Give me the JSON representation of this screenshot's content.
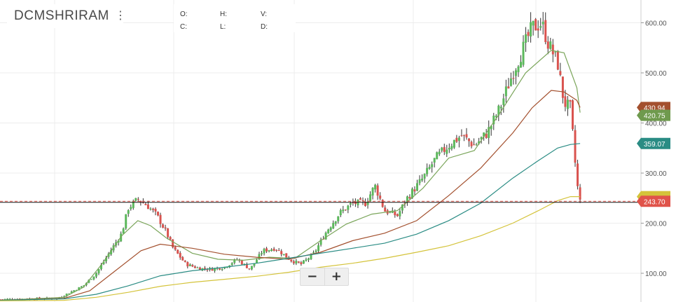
{
  "header": {
    "symbol": "DCMSHRIRAM",
    "menu_icon": "vertical-dots-icon"
  },
  "ohlc": {
    "o_label": "O:",
    "h_label": "H:",
    "l_label": "L:",
    "c_label": "C:",
    "v_label": "V:",
    "d_label": "D:"
  },
  "zoom": {
    "minus_label": "−",
    "plus_label": "+"
  },
  "colors": {
    "up": "#5cb85c",
    "down": "#d9534f",
    "ema20": "#7aa55a",
    "ema50": "#a3502e",
    "ema100": "#2a8c84",
    "ema200": "#d4c33a",
    "price": "#e0534a"
  },
  "chart_data": {
    "type": "candlestick",
    "symbol": "DCMSHRIRAM",
    "y_axis": {
      "ticks": [
        100,
        200,
        300,
        400,
        500,
        600
      ],
      "tick_labels": [
        "100.00",
        "200.00",
        "300.00",
        "400.00",
        "500.00",
        "600.00"
      ],
      "range": [
        40,
        640
      ],
      "position": "right"
    },
    "grid": true,
    "close_path": [
      [
        0,
        48
      ],
      [
        0.04,
        49
      ],
      [
        0.09,
        50
      ],
      [
        0.1,
        56
      ],
      [
        0.13,
        75
      ],
      [
        0.15,
        100
      ],
      [
        0.17,
        140
      ],
      [
        0.19,
        180
      ],
      [
        0.2,
        230
      ],
      [
        0.215,
        248
      ],
      [
        0.23,
        235
      ],
      [
        0.245,
        215
      ],
      [
        0.26,
        180
      ],
      [
        0.27,
        150
      ],
      [
        0.29,
        118
      ],
      [
        0.31,
        110
      ],
      [
        0.33,
        108
      ],
      [
        0.35,
        112
      ],
      [
        0.37,
        128
      ],
      [
        0.39,
        108
      ],
      [
        0.41,
        145
      ],
      [
        0.43,
        150
      ],
      [
        0.455,
        125
      ],
      [
        0.47,
        118
      ],
      [
        0.49,
        140
      ],
      [
        0.51,
        185
      ],
      [
        0.53,
        220
      ],
      [
        0.55,
        240
      ],
      [
        0.57,
        240
      ],
      [
        0.585,
        275
      ],
      [
        0.6,
        225
      ],
      [
        0.62,
        215
      ],
      [
        0.635,
        250
      ],
      [
        0.66,
        290
      ],
      [
        0.68,
        330
      ],
      [
        0.7,
        355
      ],
      [
        0.72,
        375
      ],
      [
        0.74,
        355
      ],
      [
        0.76,
        380
      ],
      [
        0.78,
        430
      ],
      [
        0.8,
        500
      ],
      [
        0.82,
        560
      ],
      [
        0.83,
        590
      ],
      [
        0.845,
        600
      ],
      [
        0.855,
        560
      ],
      [
        0.87,
        520
      ],
      [
        0.88,
        440
      ],
      [
        0.89,
        430
      ],
      [
        0.9,
        280
      ],
      [
        0.905,
        243.7
      ]
    ],
    "moving_averages": [
      {
        "color": "#7aa55a",
        "last": 420.75,
        "path": [
          [
            0,
            46
          ],
          [
            0.1,
            52
          ],
          [
            0.13,
            72
          ],
          [
            0.16,
            120
          ],
          [
            0.19,
            175
          ],
          [
            0.215,
            205
          ],
          [
            0.235,
            195
          ],
          [
            0.26,
            170
          ],
          [
            0.3,
            140
          ],
          [
            0.34,
            128
          ],
          [
            0.38,
            126
          ],
          [
            0.42,
            132
          ],
          [
            0.46,
            130
          ],
          [
            0.5,
            165
          ],
          [
            0.54,
            198
          ],
          [
            0.58,
            218
          ],
          [
            0.62,
            225
          ],
          [
            0.66,
            270
          ],
          [
            0.7,
            330
          ],
          [
            0.74,
            345
          ],
          [
            0.78,
            420
          ],
          [
            0.82,
            500
          ],
          [
            0.86,
            545
          ],
          [
            0.88,
            540
          ],
          [
            0.9,
            470
          ],
          [
            0.905,
            420.75
          ]
        ]
      },
      {
        "color": "#a3502e",
        "last": 430.94,
        "path": [
          [
            0,
            46
          ],
          [
            0.1,
            50
          ],
          [
            0.14,
            65
          ],
          [
            0.18,
            105
          ],
          [
            0.22,
            145
          ],
          [
            0.25,
            158
          ],
          [
            0.3,
            150
          ],
          [
            0.35,
            138
          ],
          [
            0.4,
            132
          ],
          [
            0.45,
            128
          ],
          [
            0.5,
            142
          ],
          [
            0.55,
            165
          ],
          [
            0.6,
            180
          ],
          [
            0.65,
            205
          ],
          [
            0.7,
            255
          ],
          [
            0.75,
            310
          ],
          [
            0.8,
            380
          ],
          [
            0.83,
            430
          ],
          [
            0.86,
            465
          ],
          [
            0.88,
            462
          ],
          [
            0.9,
            445
          ],
          [
            0.905,
            430.94
          ]
        ]
      },
      {
        "color": "#2a8c84",
        "last": 359.07,
        "path": [
          [
            0,
            46
          ],
          [
            0.1,
            49
          ],
          [
            0.15,
            58
          ],
          [
            0.2,
            75
          ],
          [
            0.25,
            95
          ],
          [
            0.3,
            105
          ],
          [
            0.35,
            112
          ],
          [
            0.4,
            120
          ],
          [
            0.45,
            130
          ],
          [
            0.5,
            140
          ],
          [
            0.55,
            150
          ],
          [
            0.6,
            160
          ],
          [
            0.65,
            178
          ],
          [
            0.7,
            205
          ],
          [
            0.75,
            240
          ],
          [
            0.8,
            290
          ],
          [
            0.84,
            325
          ],
          [
            0.87,
            350
          ],
          [
            0.89,
            357
          ],
          [
            0.905,
            359.07
          ]
        ]
      },
      {
        "color": "#d4c33a",
        "last": 253,
        "path": [
          [
            0,
            45
          ],
          [
            0.1,
            46
          ],
          [
            0.15,
            52
          ],
          [
            0.2,
            62
          ],
          [
            0.25,
            74
          ],
          [
            0.3,
            82
          ],
          [
            0.35,
            88
          ],
          [
            0.4,
            94
          ],
          [
            0.45,
            102
          ],
          [
            0.5,
            112
          ],
          [
            0.55,
            120
          ],
          [
            0.6,
            130
          ],
          [
            0.65,
            142
          ],
          [
            0.7,
            155
          ],
          [
            0.75,
            175
          ],
          [
            0.8,
            200
          ],
          [
            0.84,
            225
          ],
          [
            0.87,
            245
          ],
          [
            0.89,
            253
          ],
          [
            0.905,
            253
          ]
        ]
      }
    ],
    "last_price": 243.7,
    "price_tags": [
      {
        "label": "430.94",
        "value": 430.94,
        "color": "#a3502e"
      },
      {
        "label": "420.75",
        "value": 420.75,
        "color": "#6f9a4e"
      },
      {
        "label": "359.07",
        "value": 359.07,
        "color": "#2a8c84"
      },
      {
        "label": "243.70",
        "value": 243.7,
        "color": "#e0534a"
      }
    ]
  }
}
